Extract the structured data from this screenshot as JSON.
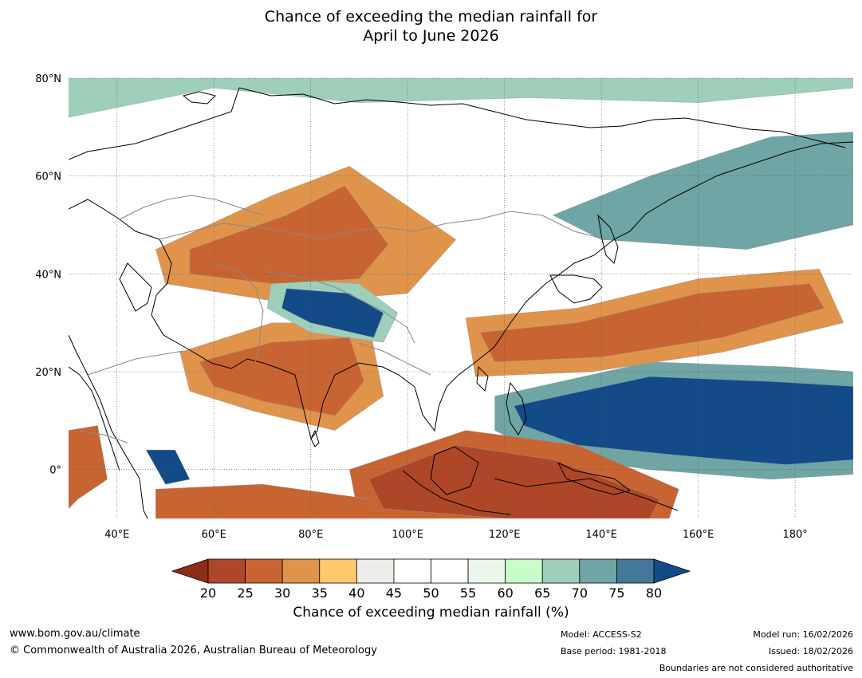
{
  "title": {
    "line1": "Chance of exceeding the median rainfall for",
    "line2": "April to June 2026"
  },
  "map": {
    "lon_range": [
      30,
      192
    ],
    "lat_range": [
      -10,
      80
    ],
    "lat_ticks": [
      {
        "value": 80,
        "label": "80°N"
      },
      {
        "value": 60,
        "label": "60°N"
      },
      {
        "value": 40,
        "label": "40°N"
      },
      {
        "value": 20,
        "label": "20°N"
      },
      {
        "value": 0,
        "label": "0°"
      }
    ],
    "lon_ticks": [
      {
        "value": 40,
        "label": "40°E"
      },
      {
        "value": 60,
        "label": "60°E"
      },
      {
        "value": 80,
        "label": "80°E"
      },
      {
        "value": 100,
        "label": "100°E"
      },
      {
        "value": 120,
        "label": "120°E"
      },
      {
        "value": 140,
        "label": "140°E"
      },
      {
        "value": 160,
        "label": "160°E"
      },
      {
        "value": 180,
        "label": "180°"
      }
    ],
    "regions": [
      {
        "desc": "west-pacific-wet",
        "lon": [
          122,
          150,
          175,
          192,
          192,
          178,
          155,
          135,
          124
        ],
        "lat": [
          13,
          19,
          18,
          17,
          2,
          1,
          3,
          5,
          9
        ],
        "value": 82
      },
      {
        "desc": "west-pacific-wet-edge",
        "lon": [
          118,
          150,
          178,
          192,
          192,
          175,
          150,
          128,
          118
        ],
        "lat": [
          15,
          22,
          21,
          20,
          -1,
          -2,
          0,
          3,
          8
        ],
        "value": 72
      },
      {
        "desc": "maritime-continent-dry",
        "lon": [
          92,
          110,
          130,
          152,
          150,
          120,
          95
        ],
        "lat": [
          -2,
          5,
          2,
          -6,
          -10,
          -10,
          -8
        ],
        "value": 22
      },
      {
        "desc": "maritime-continent-dry-edge",
        "lon": [
          88,
          112,
          135,
          156,
          154,
          118,
          90
        ],
        "lat": [
          0,
          8,
          5,
          -4,
          -10,
          -10,
          -10
        ],
        "value": 27
      },
      {
        "desc": "south-china-japan-dry",
        "lon": [
          115,
          135,
          160,
          183,
          186,
          165,
          140,
          118
        ],
        "lat": [
          28,
          30,
          36,
          38,
          33,
          27,
          23,
          22
        ],
        "value": 27
      },
      {
        "desc": "south-china-japan-dry-edge",
        "lon": [
          112,
          135,
          160,
          185,
          190,
          165,
          138,
          114
        ],
        "lat": [
          31,
          33,
          39,
          41,
          30,
          24,
          20,
          19
        ],
        "value": 34
      },
      {
        "desc": "india-arabian-sea-dry",
        "lon": [
          57,
          72,
          88,
          91,
          85,
          70,
          60
        ],
        "lat": [
          22,
          26,
          27,
          18,
          11,
          14,
          17
        ],
        "value": 27
      },
      {
        "desc": "india-arabian-sea-dry-edge",
        "lon": [
          53,
          72,
          92,
          95,
          85,
          68,
          55
        ],
        "lat": [
          24,
          30,
          30,
          15,
          8,
          12,
          16
        ],
        "value": 34
      },
      {
        "desc": "central-asia-dry",
        "lon": [
          55,
          75,
          87,
          96,
          90,
          72,
          55
        ],
        "lat": [
          45,
          52,
          58,
          46,
          39,
          38,
          40
        ],
        "value": 27
      },
      {
        "desc": "central-asia-dry-edge",
        "lon": [
          48,
          72,
          88,
          110,
          100,
          75,
          50
        ],
        "lat": [
          45,
          56,
          62,
          47,
          36,
          34,
          38
        ],
        "value": 34
      },
      {
        "desc": "indian-ocean-south-dry",
        "lon": [
          48,
          70,
          92,
          95,
          70,
          48
        ],
        "lat": [
          -4,
          -3,
          -6,
          -10,
          -10,
          -10
        ],
        "value": 27
      },
      {
        "desc": "tibet-wet",
        "lon": [
          75,
          88,
          95,
          93,
          80,
          74
        ],
        "lat": [
          37,
          36,
          32,
          27,
          30,
          33
        ],
        "value": 82
      },
      {
        "desc": "tibet-wet-edge",
        "lon": [
          72,
          90,
          98,
          95,
          80,
          71
        ],
        "lat": [
          39,
          38,
          32,
          26,
          28,
          33
        ],
        "value": 68
      },
      {
        "desc": "somalia-wet",
        "lon": [
          46,
          52,
          55,
          50
        ],
        "lat": [
          4,
          4,
          -2,
          -3
        ],
        "value": 82
      },
      {
        "desc": "east-asia-north-wet",
        "lon": [
          130,
          150,
          175,
          192,
          192,
          170,
          140
        ],
        "lat": [
          52,
          60,
          68,
          69,
          50,
          45,
          47
        ],
        "value": 72
      },
      {
        "desc": "arctic-wet",
        "lon": [
          30,
          60,
          90,
          125,
          160,
          192,
          192,
          30
        ],
        "lat": [
          72,
          78,
          75,
          76,
          75,
          78,
          80,
          80
        ],
        "value": 66
      },
      {
        "desc": "africa-west-dry",
        "lon": [
          30,
          36,
          38,
          32,
          30
        ],
        "lat": [
          8,
          9,
          -2,
          -6,
          -8
        ],
        "value": 27
      }
    ]
  },
  "colorbar": {
    "levels": [
      20,
      25,
      30,
      35,
      40,
      45,
      50,
      55,
      60,
      65,
      70,
      75,
      80
    ],
    "colors": [
      "#8b2d17",
      "#ae4727",
      "#c86432",
      "#e0944b",
      "#fec96e",
      "#ededea",
      "#ffffff",
      "#ffffff",
      "#eaf7ea",
      "#c8fcc9",
      "#9dcfbb",
      "#6fa5a5",
      "#43789a",
      "#134b89"
    ],
    "label": "Chance of exceeding median rainfall (%)"
  },
  "footer": {
    "website": "www.bom.gov.au/climate",
    "copyright": "© Commonwealth of Australia 2026, Australian Bureau of Meteorology",
    "model": "Model: ACCESS-S2",
    "base_period": "Base period: 1981-2018",
    "model_run": "Model run: 16/02/2026",
    "issued": "Issued: 18/02/2026",
    "disclaimer": "Boundaries are not considered authoritative"
  }
}
